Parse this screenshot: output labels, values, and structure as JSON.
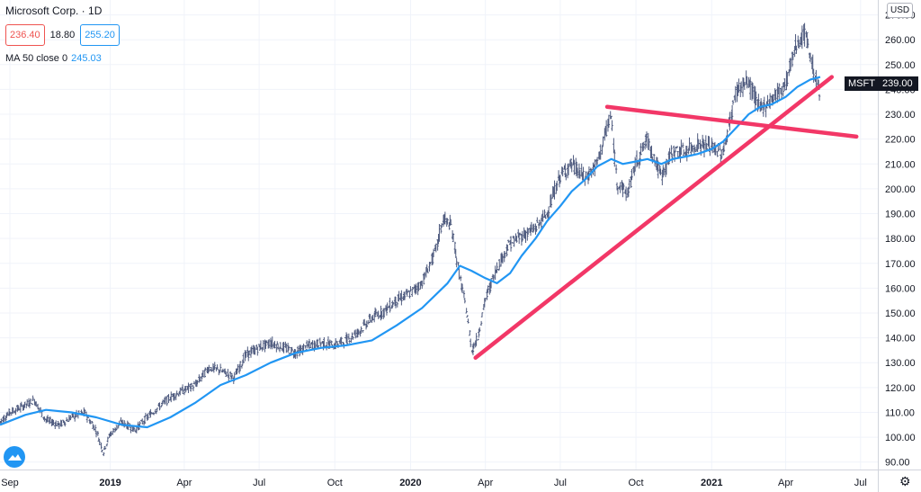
{
  "legend": {
    "title": "Microsoft Corp. · 1D",
    "low": "236.40",
    "change": "18.80",
    "high": "255.20",
    "ma_label": "MA 50 close 0",
    "ma_value": "245.03"
  },
  "currency": "USD",
  "last_price": {
    "symbol": "MSFT",
    "value": "239.00"
  },
  "colors": {
    "candles": "#4e5a7e",
    "ma": "#2196f3",
    "trendline": "#f23767",
    "price_label_bg": "#131722",
    "grid": "#f0f3fa"
  },
  "chart_data": {
    "type": "line",
    "title": "",
    "xlabel": "",
    "ylabel": "",
    "x_ticks": [
      {
        "date": "2018-09-01",
        "label": "Sep",
        "bold": false
      },
      {
        "date": "2019-01-01",
        "label": "2019",
        "bold": true
      },
      {
        "date": "2019-04-01",
        "label": "Apr",
        "bold": false
      },
      {
        "date": "2019-07-01",
        "label": "Jul",
        "bold": false
      },
      {
        "date": "2019-10-01",
        "label": "Oct",
        "bold": false
      },
      {
        "date": "2020-01-01",
        "label": "2020",
        "bold": true
      },
      {
        "date": "2020-04-01",
        "label": "Apr",
        "bold": false
      },
      {
        "date": "2020-07-01",
        "label": "Jul",
        "bold": false
      },
      {
        "date": "2020-10-01",
        "label": "Oct",
        "bold": false
      },
      {
        "date": "2021-01-01",
        "label": "2021",
        "bold": true
      },
      {
        "date": "2021-04-01",
        "label": "Apr",
        "bold": false
      },
      {
        "date": "2021-07-01",
        "label": "Jul",
        "bold": false
      }
    ],
    "y_ticks": [
      90,
      100,
      110,
      120,
      130,
      140,
      150,
      160,
      170,
      180,
      190,
      200,
      210,
      220,
      230,
      240,
      250,
      260,
      270
    ],
    "ylim": [
      87,
      276
    ],
    "xlim": [
      "2018-08-20",
      "2021-07-22"
    ],
    "grid": true,
    "series": [
      {
        "name": "Microsoft Corp.",
        "kind": "price",
        "points": [
          [
            "2018-08-20",
            106
          ],
          [
            "2018-09-01",
            110
          ],
          [
            "2018-09-15",
            112
          ],
          [
            "2018-10-01",
            115
          ],
          [
            "2018-10-15",
            107
          ],
          [
            "2018-11-01",
            105
          ],
          [
            "2018-11-15",
            108
          ],
          [
            "2018-12-01",
            110
          ],
          [
            "2018-12-15",
            103
          ],
          [
            "2018-12-24",
            94
          ],
          [
            "2019-01-01",
            101
          ],
          [
            "2019-01-15",
            106
          ],
          [
            "2019-02-01",
            103
          ],
          [
            "2019-02-15",
            108
          ],
          [
            "2019-03-01",
            112
          ],
          [
            "2019-03-15",
            116
          ],
          [
            "2019-04-01",
            119
          ],
          [
            "2019-04-15",
            121
          ],
          [
            "2019-05-01",
            128
          ],
          [
            "2019-05-15",
            127
          ],
          [
            "2019-06-01",
            124
          ],
          [
            "2019-06-15",
            133
          ],
          [
            "2019-07-01",
            136
          ],
          [
            "2019-07-15",
            138
          ],
          [
            "2019-08-01",
            136
          ],
          [
            "2019-08-15",
            134
          ],
          [
            "2019-09-01",
            137
          ],
          [
            "2019-09-15",
            138
          ],
          [
            "2019-10-01",
            137
          ],
          [
            "2019-10-15",
            139
          ],
          [
            "2019-11-01",
            143
          ],
          [
            "2019-11-15",
            148
          ],
          [
            "2019-12-01",
            151
          ],
          [
            "2019-12-15",
            155
          ],
          [
            "2020-01-01",
            158
          ],
          [
            "2020-01-15",
            162
          ],
          [
            "2020-02-01",
            175
          ],
          [
            "2020-02-10",
            188
          ],
          [
            "2020-02-20",
            185
          ],
          [
            "2020-03-01",
            165
          ],
          [
            "2020-03-10",
            150
          ],
          [
            "2020-03-16",
            135
          ],
          [
            "2020-03-23",
            140
          ],
          [
            "2020-04-01",
            155
          ],
          [
            "2020-04-15",
            168
          ],
          [
            "2020-05-01",
            178
          ],
          [
            "2020-05-15",
            181
          ],
          [
            "2020-06-01",
            184
          ],
          [
            "2020-06-15",
            190
          ],
          [
            "2020-07-01",
            205
          ],
          [
            "2020-07-15",
            210
          ],
          [
            "2020-08-01",
            204
          ],
          [
            "2020-08-15",
            210
          ],
          [
            "2020-09-01",
            230
          ],
          [
            "2020-09-08",
            203
          ],
          [
            "2020-09-21",
            198
          ],
          [
            "2020-10-01",
            210
          ],
          [
            "2020-10-15",
            220
          ],
          [
            "2020-11-01",
            205
          ],
          [
            "2020-11-15",
            215
          ],
          [
            "2020-12-01",
            215
          ],
          [
            "2020-12-15",
            218
          ],
          [
            "2021-01-01",
            217
          ],
          [
            "2021-01-15",
            214
          ],
          [
            "2021-02-01",
            240
          ],
          [
            "2021-02-15",
            243
          ],
          [
            "2021-03-01",
            232
          ],
          [
            "2021-03-15",
            236
          ],
          [
            "2021-04-01",
            242
          ],
          [
            "2021-04-15",
            259
          ],
          [
            "2021-04-26",
            262
          ],
          [
            "2021-05-05",
            248
          ],
          [
            "2021-05-13",
            239
          ]
        ]
      },
      {
        "name": "MA 50 close 0",
        "kind": "ma",
        "points": [
          [
            "2018-08-20",
            105
          ],
          [
            "2018-09-20",
            109
          ],
          [
            "2018-10-15",
            111
          ],
          [
            "2018-11-15",
            110
          ],
          [
            "2018-12-15",
            108
          ],
          [
            "2019-01-15",
            105
          ],
          [
            "2019-02-15",
            104
          ],
          [
            "2019-03-15",
            108
          ],
          [
            "2019-04-15",
            114
          ],
          [
            "2019-05-15",
            121
          ],
          [
            "2019-06-15",
            125
          ],
          [
            "2019-07-15",
            130
          ],
          [
            "2019-08-15",
            134
          ],
          [
            "2019-09-15",
            136
          ],
          [
            "2019-10-15",
            137
          ],
          [
            "2019-11-15",
            139
          ],
          [
            "2019-12-15",
            145
          ],
          [
            "2020-01-15",
            152
          ],
          [
            "2020-02-15",
            162
          ],
          [
            "2020-03-01",
            169
          ],
          [
            "2020-03-15",
            167
          ],
          [
            "2020-04-01",
            164
          ],
          [
            "2020-04-15",
            162
          ],
          [
            "2020-05-01",
            166
          ],
          [
            "2020-05-15",
            173
          ],
          [
            "2020-06-01",
            180
          ],
          [
            "2020-06-15",
            187
          ],
          [
            "2020-07-01",
            193
          ],
          [
            "2020-07-15",
            199
          ],
          [
            "2020-08-01",
            204
          ],
          [
            "2020-08-15",
            209
          ],
          [
            "2020-09-01",
            212
          ],
          [
            "2020-09-15",
            210
          ],
          [
            "2020-10-01",
            211
          ],
          [
            "2020-10-15",
            212
          ],
          [
            "2020-11-01",
            210
          ],
          [
            "2020-11-15",
            212
          ],
          [
            "2020-12-01",
            213
          ],
          [
            "2020-12-15",
            214
          ],
          [
            "2021-01-01",
            216
          ],
          [
            "2021-01-15",
            219
          ],
          [
            "2021-02-01",
            225
          ],
          [
            "2021-02-15",
            230
          ],
          [
            "2021-03-01",
            233
          ],
          [
            "2021-03-15",
            234
          ],
          [
            "2021-04-01",
            237
          ],
          [
            "2021-04-15",
            241
          ],
          [
            "2021-05-01",
            244
          ],
          [
            "2021-05-13",
            245
          ]
        ]
      }
    ],
    "trendlines": [
      {
        "name": "support",
        "from": [
          "2020-03-20",
          132
        ],
        "to": [
          "2021-05-27",
          245
        ]
      },
      {
        "name": "resistance",
        "from": [
          "2020-08-27",
          233
        ],
        "to": [
          "2021-06-26",
          221
        ]
      }
    ]
  }
}
